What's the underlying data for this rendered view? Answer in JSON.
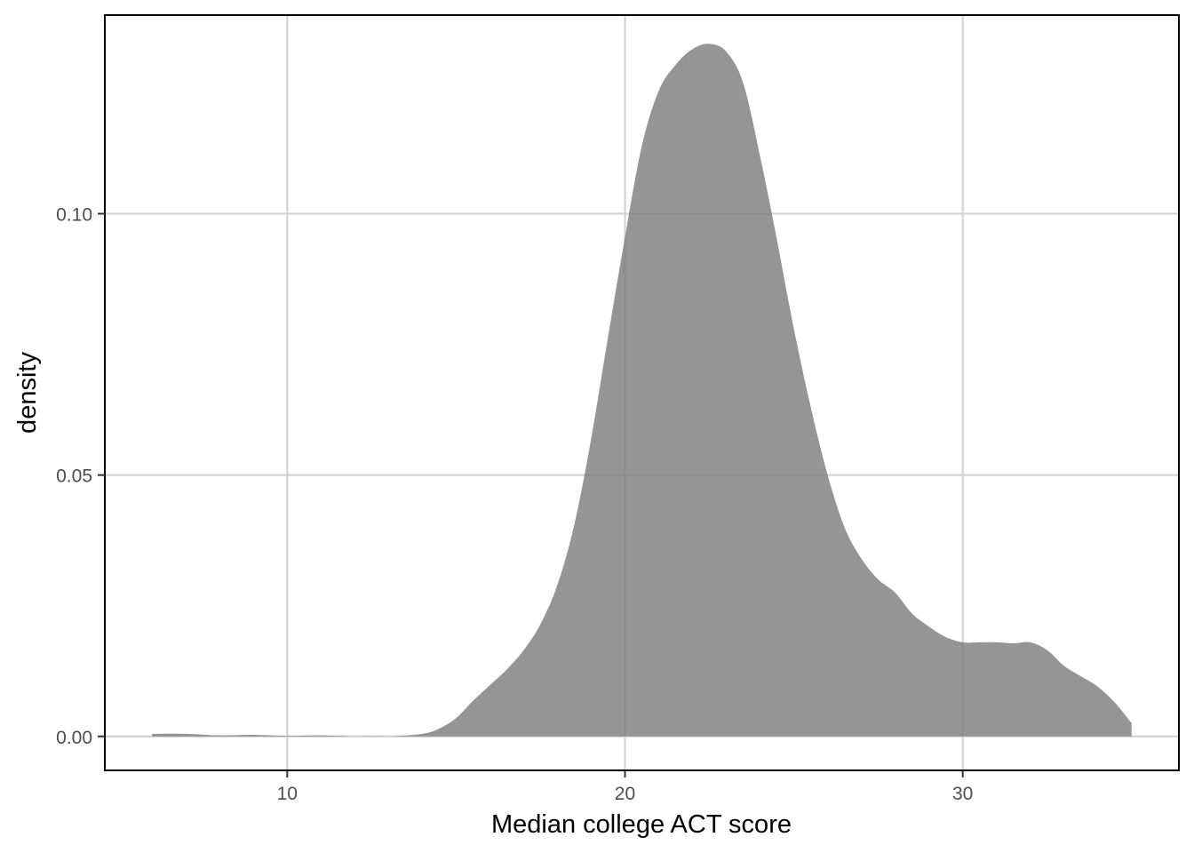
{
  "chart_data": {
    "type": "area",
    "title": "",
    "xlabel": "Median college ACT score",
    "ylabel": "density",
    "xlim": [
      4.6,
      36.4
    ],
    "ylim": [
      -0.0065,
      0.138
    ],
    "x_ticks": [
      10,
      20,
      30
    ],
    "x_tick_labels": [
      "10",
      "20",
      "30"
    ],
    "y_ticks": [
      0.0,
      0.05,
      0.1
    ],
    "y_tick_labels": [
      "0.00",
      "0.05",
      "0.10"
    ],
    "grid": true,
    "legend": "none",
    "fill_color": "#7a7a7a",
    "fill_opacity": 0.8,
    "series": [
      {
        "x": [
          6,
          7,
          8,
          9,
          10,
          11,
          12,
          13,
          14,
          14.5,
          15,
          15.5,
          16,
          16.5,
          17,
          17.5,
          18,
          18.5,
          19,
          19.5,
          20,
          20.5,
          21,
          21.5,
          22,
          22.5,
          23,
          23.5,
          24,
          24.5,
          25,
          25.5,
          26,
          26.5,
          27,
          27.5,
          28,
          28.5,
          29,
          29.5,
          30,
          30.5,
          31,
          31.5,
          32,
          32.5,
          33,
          33.5,
          34,
          34.5,
          35
        ],
        "values": [
          0.0005,
          0.0005,
          0.0002,
          0.0003,
          0.0001,
          0.0002,
          0.0,
          0.0,
          0.0005,
          0.0015,
          0.0035,
          0.0068,
          0.0098,
          0.0128,
          0.0165,
          0.0215,
          0.029,
          0.0405,
          0.057,
          0.0765,
          0.0955,
          0.113,
          0.1235,
          0.1285,
          0.1315,
          0.1325,
          0.131,
          0.125,
          0.111,
          0.095,
          0.078,
          0.063,
          0.05,
          0.04,
          0.034,
          0.03,
          0.0275,
          0.0235,
          0.021,
          0.019,
          0.018,
          0.018,
          0.018,
          0.0178,
          0.018,
          0.0165,
          0.0135,
          0.0115,
          0.0095,
          0.0065,
          0.0025
        ]
      }
    ]
  }
}
